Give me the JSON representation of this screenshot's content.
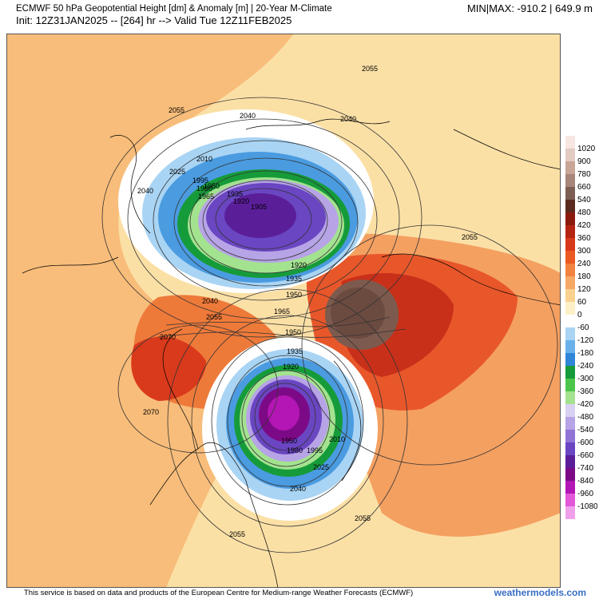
{
  "header": {
    "title": "ECMWF 50 hPa Geopotential Height [dm] & Anomaly [m] | 20-Year M-Climate",
    "init": "Init: 12Z31JAN2025 -- [264] hr --> Valid Tue 12Z11FEB2025",
    "minmax": "MIN|MAX: -910.2 | 649.9 m"
  },
  "colorbar": {
    "labels": [
      "1020",
      "900",
      "780",
      "660",
      "540",
      "480",
      "420",
      "360",
      "300",
      "240",
      "180",
      "120",
      "60",
      "0",
      "-60",
      "-120",
      "-180",
      "-240",
      "-300",
      "-360",
      "-420",
      "-480",
      "-540",
      "-600",
      "-660",
      "-740",
      "-840",
      "-960",
      "-1080"
    ],
    "colors": [
      "#f7e6e2",
      "#e3cbc2",
      "#c9a597",
      "#a8857a",
      "#7c5e55",
      "#5a2a1e",
      "#8b1a0e",
      "#b52412",
      "#d8391a",
      "#ea5a22",
      "#f2823e",
      "#f6a865",
      "#fad28f",
      "#fdf0c6",
      "#ffffff",
      "#a9d4f4",
      "#6ab1ec",
      "#2f86d8",
      "#169b3a",
      "#4cc54c",
      "#a3e28f",
      "#d9d0f2",
      "#b7a4e6",
      "#8f74d6",
      "#6a46c2",
      "#5b1e99",
      "#7c0a86",
      "#b316b4",
      "#e358d9",
      "#f0a0ea"
    ]
  },
  "contour_labels": [
    "2055",
    "2040",
    "2040",
    "2055",
    "2025",
    "2010",
    "2040",
    "1995",
    "1980",
    "1950",
    "1965",
    "1935",
    "1920",
    "1905",
    "2055",
    "1920",
    "1935",
    "2040",
    "1950",
    "2055",
    "1965",
    "2070",
    "1950",
    "1935",
    "1920",
    "2070",
    "2010",
    "1950",
    "1980",
    "1995",
    "2025",
    "2040",
    "2055",
    "2055"
  ],
  "footer": "This service is based on data and products of the European Centre for Medium-range Weather Forecasts (ECMWF)",
  "site": "weathermodels.com"
}
